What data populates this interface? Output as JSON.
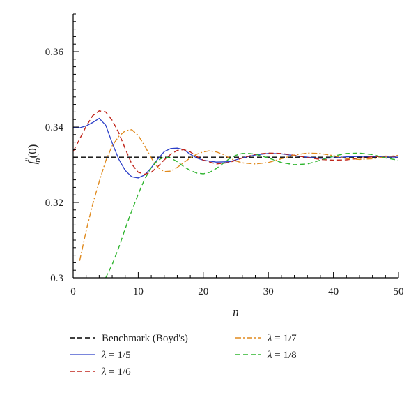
{
  "chart_data": {
    "type": "line",
    "xlabel": "n",
    "ylabel": "f_n''(0)",
    "xlim": [
      0,
      50
    ],
    "ylim": [
      0.3,
      0.37
    ],
    "xticks": [
      "0",
      "10",
      "20",
      "30",
      "40",
      "50"
    ],
    "yticks": [
      "0.3",
      "0.32",
      "0.34",
      "0.36"
    ],
    "grid": false,
    "legend_position": "below plot",
    "series": [
      {
        "name": "Benchmark (Boyd's)",
        "color": "#000000",
        "dash": "dashed",
        "x": [
          0,
          50
        ],
        "y": [
          0.332,
          0.332
        ]
      },
      {
        "name": "λ = 1/5",
        "color": "#2b3fc8",
        "dash": "solid",
        "x": [
          0,
          1,
          2,
          3,
          4,
          5,
          6,
          7,
          8,
          9,
          10,
          11,
          12,
          13,
          14,
          15,
          16,
          17,
          18,
          19,
          20,
          22,
          24,
          26,
          28,
          30,
          32,
          34,
          36,
          38,
          40,
          42,
          44,
          46,
          48,
          50
        ],
        "y": [
          0.3398,
          0.3398,
          0.3403,
          0.3412,
          0.3423,
          0.3405,
          0.3358,
          0.3315,
          0.3285,
          0.3268,
          0.3265,
          0.3273,
          0.3292,
          0.3315,
          0.3335,
          0.3343,
          0.3344,
          0.334,
          0.3328,
          0.3318,
          0.3312,
          0.3307,
          0.3308,
          0.3318,
          0.3326,
          0.333,
          0.3329,
          0.3324,
          0.332,
          0.3317,
          0.3318,
          0.3321,
          0.3322,
          0.3322,
          0.3321,
          0.332
        ]
      },
      {
        "name": "λ = 1/6",
        "color": "#c0251b",
        "dash": "dashed",
        "x": [
          0,
          1,
          2,
          3,
          4,
          5,
          6,
          7,
          8,
          9,
          10,
          11,
          12,
          13,
          14,
          15,
          16,
          17,
          18,
          19,
          20,
          22,
          24,
          26,
          28,
          30,
          32,
          34,
          36,
          38,
          40,
          42,
          44,
          46,
          48,
          50
        ],
        "y": [
          0.3335,
          0.3368,
          0.3402,
          0.343,
          0.3443,
          0.344,
          0.3418,
          0.3385,
          0.3343,
          0.3302,
          0.328,
          0.3275,
          0.328,
          0.3295,
          0.3313,
          0.3328,
          0.3338,
          0.334,
          0.3334,
          0.3322,
          0.3312,
          0.3302,
          0.3306,
          0.3318,
          0.3328,
          0.3331,
          0.333,
          0.3325,
          0.3319,
          0.3314,
          0.3312,
          0.3313,
          0.3317,
          0.3321,
          0.3323,
          0.3322
        ]
      },
      {
        "name": "λ = 1/7",
        "color": "#e08a1e",
        "dash": "dashdot",
        "x": [
          1,
          2,
          3,
          4,
          5,
          6,
          7,
          8,
          9,
          10,
          11,
          12,
          13,
          14,
          15,
          16,
          17,
          18,
          19,
          20,
          21,
          22,
          23,
          24,
          25,
          26,
          28,
          30,
          32,
          34,
          36,
          38,
          40,
          42,
          44,
          46,
          48,
          50
        ],
        "y": [
          0.3045,
          0.3125,
          0.3195,
          0.3255,
          0.331,
          0.335,
          0.3375,
          0.339,
          0.3393,
          0.3378,
          0.335,
          0.3318,
          0.3293,
          0.3282,
          0.3283,
          0.3293,
          0.3306,
          0.3318,
          0.3328,
          0.3334,
          0.3337,
          0.3334,
          0.3328,
          0.3318,
          0.331,
          0.3305,
          0.3302,
          0.3306,
          0.3316,
          0.3326,
          0.3331,
          0.333,
          0.3324,
          0.3316,
          0.3314,
          0.3316,
          0.3321,
          0.3325
        ]
      },
      {
        "name": "λ = 1/8",
        "color": "#2fb52f",
        "dash": "dashed",
        "x": [
          5,
          6,
          7,
          8,
          9,
          10,
          11,
          12,
          13,
          14,
          15,
          16,
          17,
          18,
          19,
          20,
          21,
          22,
          23,
          24,
          25,
          26,
          27,
          28,
          30,
          32,
          34,
          36,
          38,
          40,
          42,
          44,
          46,
          48,
          50
        ],
        "y": [
          0.3,
          0.3035,
          0.308,
          0.313,
          0.3178,
          0.3222,
          0.3262,
          0.3292,
          0.3312,
          0.332,
          0.3318,
          0.3308,
          0.3295,
          0.3285,
          0.3278,
          0.3276,
          0.328,
          0.329,
          0.3303,
          0.3316,
          0.3325,
          0.333,
          0.333,
          0.3328,
          0.3318,
          0.3306,
          0.33,
          0.3302,
          0.3312,
          0.3323,
          0.333,
          0.3331,
          0.3327,
          0.3318,
          0.3312
        ]
      }
    ]
  }
}
